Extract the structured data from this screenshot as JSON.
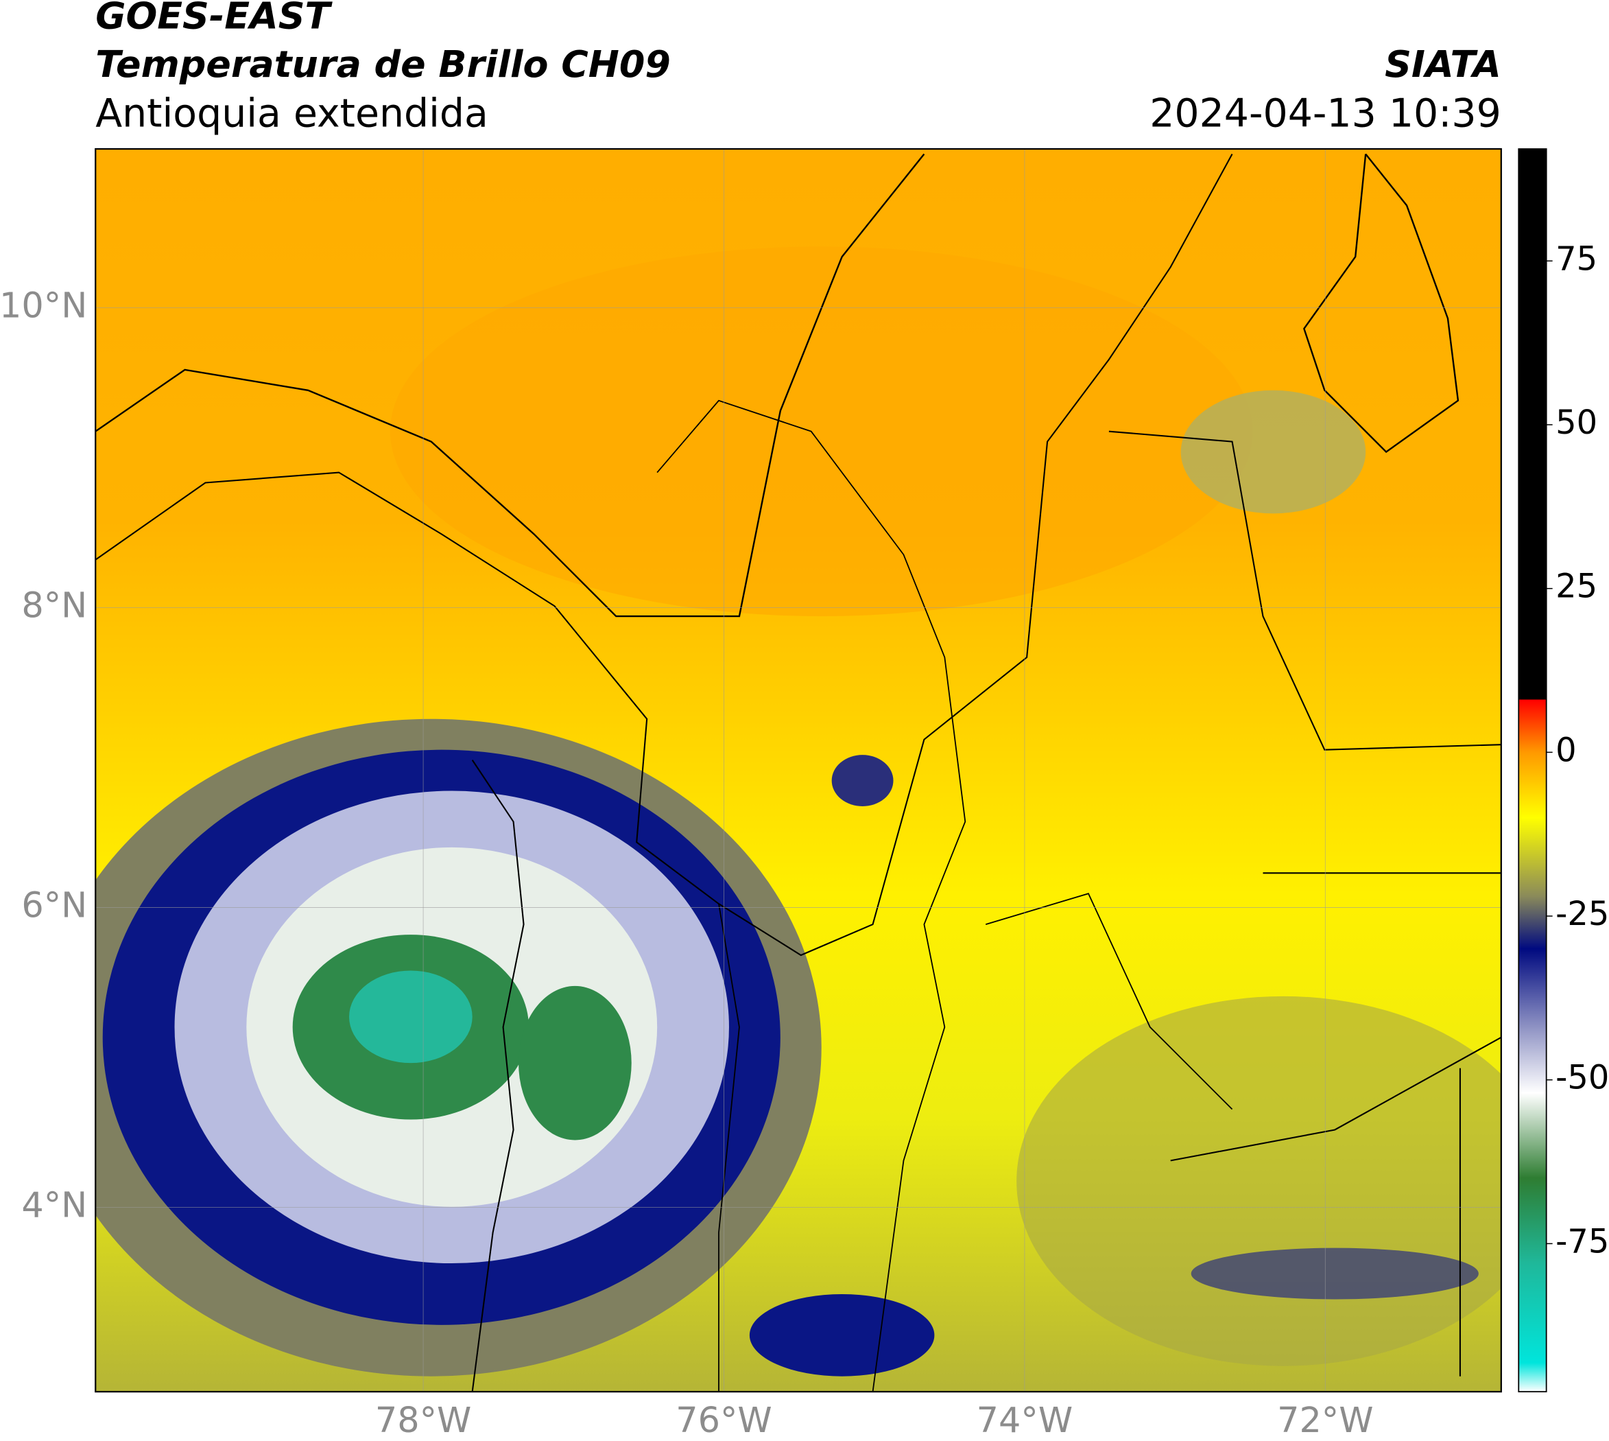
{
  "header": {
    "title": "GOES-EAST",
    "subtitle": "Temperatura de Brillo CH09",
    "region": "Antioquia extendida",
    "source": "SIATA",
    "datetime": "2024-04-13 10:39"
  },
  "map": {
    "lonlim": [
      -80.18,
      -70.83
    ],
    "latlim": [
      2.77,
      11.06
    ],
    "lonticks": [
      {
        "value": -78,
        "label": "78°W"
      },
      {
        "value": -76,
        "label": "76°W"
      },
      {
        "value": -74,
        "label": "74°W"
      },
      {
        "value": -72,
        "label": "72°W"
      }
    ],
    "latticks": [
      {
        "value": 4,
        "label": "4°N"
      },
      {
        "value": 6,
        "label": "6°N"
      },
      {
        "value": 8,
        "label": "8°N"
      },
      {
        "value": 10,
        "label": "10°N"
      }
    ],
    "grid": true
  },
  "colorbar": {
    "clim": [
      -97.6,
      92.1
    ],
    "ticks": [
      -75,
      -50,
      -25,
      0,
      25,
      50,
      75
    ],
    "colors": [
      {
        "value": -97.6,
        "color": "#ffffff"
      },
      {
        "value": -93.2,
        "color": "#00e5dc"
      },
      {
        "value": -78,
        "color": "#1fb89a"
      },
      {
        "value": -65,
        "color": "#2e7d32"
      },
      {
        "value": -52,
        "color": "#ffffff"
      },
      {
        "value": -42,
        "color": "#8f93c4"
      },
      {
        "value": -30,
        "color": "#000a80"
      },
      {
        "value": -22,
        "color": "#8a8a5a"
      },
      {
        "value": -10,
        "color": "#ffff00"
      },
      {
        "value": 0,
        "color": "#ff9900"
      },
      {
        "value": 8,
        "color": "#ff0000"
      },
      {
        "value": 8.1,
        "color": "#000000"
      },
      {
        "value": 92.1,
        "color": "#000000"
      }
    ]
  }
}
